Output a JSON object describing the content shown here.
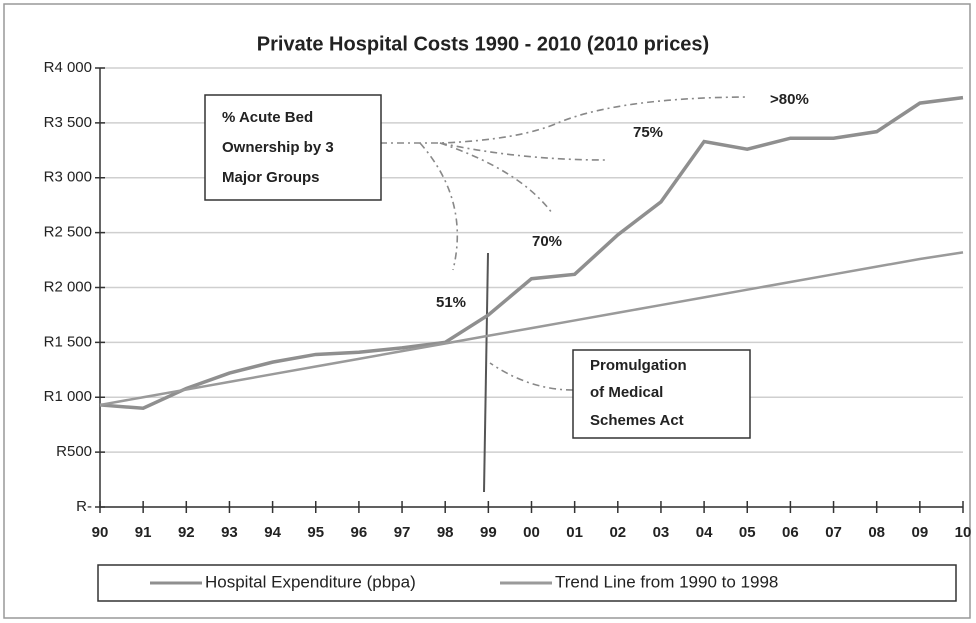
{
  "chart_data": {
    "type": "line",
    "title": "Private Hospital Costs 1990 - 2010 (2010 prices)",
    "categories": [
      "90",
      "91",
      "92",
      "93",
      "94",
      "95",
      "96",
      "97",
      "98",
      "99",
      "00",
      "01",
      "02",
      "03",
      "04",
      "05",
      "06",
      "07",
      "08",
      "09",
      "10"
    ],
    "series": [
      {
        "name": "Hospital Expenditure (pbpa)",
        "color": "#8f8f8f",
        "values": [
          930,
          900,
          1080,
          1220,
          1320,
          1390,
          1410,
          1450,
          1500,
          1750,
          2080,
          2120,
          2480,
          2780,
          3330,
          3260,
          3360,
          3360,
          3420,
          3680,
          3730
        ]
      },
      {
        "name": "Trend Line from 1990 to 1998",
        "color": "#9a9a9a",
        "values": [
          930,
          1000,
          1070,
          1140,
          1210,
          1280,
          1350,
          1420,
          1490,
          1560,
          1630,
          1700,
          1770,
          1840,
          1910,
          1980,
          2050,
          2120,
          2190,
          2260,
          2320
        ]
      }
    ],
    "ylim": [
      0,
      4000
    ],
    "yticks": [
      {
        "value": 0,
        "label": "R-"
      },
      {
        "value": 500,
        "label": "R500"
      },
      {
        "value": 1000,
        "label": "R1 000"
      },
      {
        "value": 1500,
        "label": "R1 500"
      },
      {
        "value": 2000,
        "label": "R2 000"
      },
      {
        "value": 2500,
        "label": "R2 500"
      },
      {
        "value": 3000,
        "label": "R3 000"
      },
      {
        "value": 3500,
        "label": "R3 500"
      },
      {
        "value": 4000,
        "label": "R4 000"
      }
    ],
    "grid": true,
    "legend": "bottom",
    "annotations": {
      "ownership_box": [
        "% Acute Bed",
        "Ownership by 3",
        "Major Groups"
      ],
      "act_box": [
        "Promulgation",
        "of Medical",
        "Schemes Act"
      ],
      "labels": [
        ">80%",
        "75%",
        "70%",
        "51%"
      ]
    }
  }
}
